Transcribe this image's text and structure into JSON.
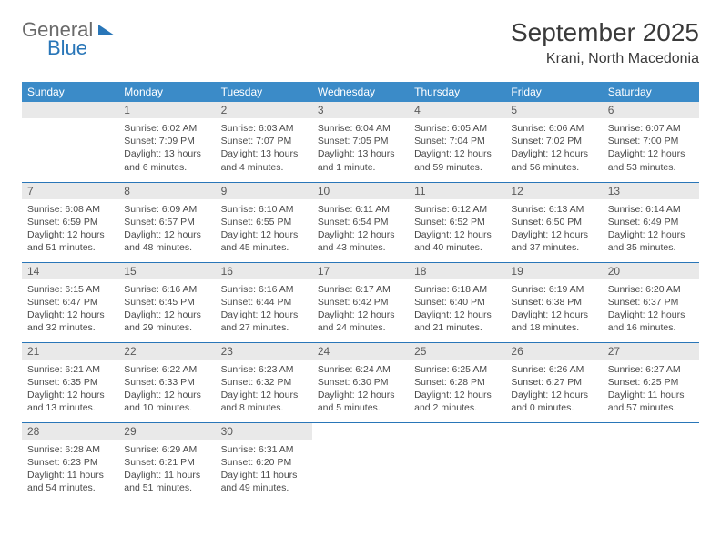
{
  "logo": {
    "word1": "General",
    "word2": "Blue",
    "brand_color": "#2976b8"
  },
  "title": "September 2025",
  "location": "Krani, North Macedonia",
  "colors": {
    "header_bg": "#3b8bc8",
    "header_fg": "#ffffff",
    "band_bg": "#e9e9e9",
    "rule": "#2976b8",
    "text": "#4a4a4a",
    "background": "#ffffff"
  },
  "typography": {
    "title_fontsize": 28,
    "location_fontsize": 16,
    "dayheader_fontsize": 12,
    "body_fontsize": 10.5
  },
  "day_names": [
    "Sunday",
    "Monday",
    "Tuesday",
    "Wednesday",
    "Thursday",
    "Friday",
    "Saturday"
  ],
  "weeks": [
    [
      null,
      {
        "n": "1",
        "sunrise": "Sunrise: 6:02 AM",
        "sunset": "Sunset: 7:09 PM",
        "daylight": "Daylight: 13 hours and 6 minutes."
      },
      {
        "n": "2",
        "sunrise": "Sunrise: 6:03 AM",
        "sunset": "Sunset: 7:07 PM",
        "daylight": "Daylight: 13 hours and 4 minutes."
      },
      {
        "n": "3",
        "sunrise": "Sunrise: 6:04 AM",
        "sunset": "Sunset: 7:05 PM",
        "daylight": "Daylight: 13 hours and 1 minute."
      },
      {
        "n": "4",
        "sunrise": "Sunrise: 6:05 AM",
        "sunset": "Sunset: 7:04 PM",
        "daylight": "Daylight: 12 hours and 59 minutes."
      },
      {
        "n": "5",
        "sunrise": "Sunrise: 6:06 AM",
        "sunset": "Sunset: 7:02 PM",
        "daylight": "Daylight: 12 hours and 56 minutes."
      },
      {
        "n": "6",
        "sunrise": "Sunrise: 6:07 AM",
        "sunset": "Sunset: 7:00 PM",
        "daylight": "Daylight: 12 hours and 53 minutes."
      }
    ],
    [
      {
        "n": "7",
        "sunrise": "Sunrise: 6:08 AM",
        "sunset": "Sunset: 6:59 PM",
        "daylight": "Daylight: 12 hours and 51 minutes."
      },
      {
        "n": "8",
        "sunrise": "Sunrise: 6:09 AM",
        "sunset": "Sunset: 6:57 PM",
        "daylight": "Daylight: 12 hours and 48 minutes."
      },
      {
        "n": "9",
        "sunrise": "Sunrise: 6:10 AM",
        "sunset": "Sunset: 6:55 PM",
        "daylight": "Daylight: 12 hours and 45 minutes."
      },
      {
        "n": "10",
        "sunrise": "Sunrise: 6:11 AM",
        "sunset": "Sunset: 6:54 PM",
        "daylight": "Daylight: 12 hours and 43 minutes."
      },
      {
        "n": "11",
        "sunrise": "Sunrise: 6:12 AM",
        "sunset": "Sunset: 6:52 PM",
        "daylight": "Daylight: 12 hours and 40 minutes."
      },
      {
        "n": "12",
        "sunrise": "Sunrise: 6:13 AM",
        "sunset": "Sunset: 6:50 PM",
        "daylight": "Daylight: 12 hours and 37 minutes."
      },
      {
        "n": "13",
        "sunrise": "Sunrise: 6:14 AM",
        "sunset": "Sunset: 6:49 PM",
        "daylight": "Daylight: 12 hours and 35 minutes."
      }
    ],
    [
      {
        "n": "14",
        "sunrise": "Sunrise: 6:15 AM",
        "sunset": "Sunset: 6:47 PM",
        "daylight": "Daylight: 12 hours and 32 minutes."
      },
      {
        "n": "15",
        "sunrise": "Sunrise: 6:16 AM",
        "sunset": "Sunset: 6:45 PM",
        "daylight": "Daylight: 12 hours and 29 minutes."
      },
      {
        "n": "16",
        "sunrise": "Sunrise: 6:16 AM",
        "sunset": "Sunset: 6:44 PM",
        "daylight": "Daylight: 12 hours and 27 minutes."
      },
      {
        "n": "17",
        "sunrise": "Sunrise: 6:17 AM",
        "sunset": "Sunset: 6:42 PM",
        "daylight": "Daylight: 12 hours and 24 minutes."
      },
      {
        "n": "18",
        "sunrise": "Sunrise: 6:18 AM",
        "sunset": "Sunset: 6:40 PM",
        "daylight": "Daylight: 12 hours and 21 minutes."
      },
      {
        "n": "19",
        "sunrise": "Sunrise: 6:19 AM",
        "sunset": "Sunset: 6:38 PM",
        "daylight": "Daylight: 12 hours and 18 minutes."
      },
      {
        "n": "20",
        "sunrise": "Sunrise: 6:20 AM",
        "sunset": "Sunset: 6:37 PM",
        "daylight": "Daylight: 12 hours and 16 minutes."
      }
    ],
    [
      {
        "n": "21",
        "sunrise": "Sunrise: 6:21 AM",
        "sunset": "Sunset: 6:35 PM",
        "daylight": "Daylight: 12 hours and 13 minutes."
      },
      {
        "n": "22",
        "sunrise": "Sunrise: 6:22 AM",
        "sunset": "Sunset: 6:33 PM",
        "daylight": "Daylight: 12 hours and 10 minutes."
      },
      {
        "n": "23",
        "sunrise": "Sunrise: 6:23 AM",
        "sunset": "Sunset: 6:32 PM",
        "daylight": "Daylight: 12 hours and 8 minutes."
      },
      {
        "n": "24",
        "sunrise": "Sunrise: 6:24 AM",
        "sunset": "Sunset: 6:30 PM",
        "daylight": "Daylight: 12 hours and 5 minutes."
      },
      {
        "n": "25",
        "sunrise": "Sunrise: 6:25 AM",
        "sunset": "Sunset: 6:28 PM",
        "daylight": "Daylight: 12 hours and 2 minutes."
      },
      {
        "n": "26",
        "sunrise": "Sunrise: 6:26 AM",
        "sunset": "Sunset: 6:27 PM",
        "daylight": "Daylight: 12 hours and 0 minutes."
      },
      {
        "n": "27",
        "sunrise": "Sunrise: 6:27 AM",
        "sunset": "Sunset: 6:25 PM",
        "daylight": "Daylight: 11 hours and 57 minutes."
      }
    ],
    [
      {
        "n": "28",
        "sunrise": "Sunrise: 6:28 AM",
        "sunset": "Sunset: 6:23 PM",
        "daylight": "Daylight: 11 hours and 54 minutes."
      },
      {
        "n": "29",
        "sunrise": "Sunrise: 6:29 AM",
        "sunset": "Sunset: 6:21 PM",
        "daylight": "Daylight: 11 hours and 51 minutes."
      },
      {
        "n": "30",
        "sunrise": "Sunrise: 6:31 AM",
        "sunset": "Sunset: 6:20 PM",
        "daylight": "Daylight: 11 hours and 49 minutes."
      },
      null,
      null,
      null,
      null
    ]
  ]
}
